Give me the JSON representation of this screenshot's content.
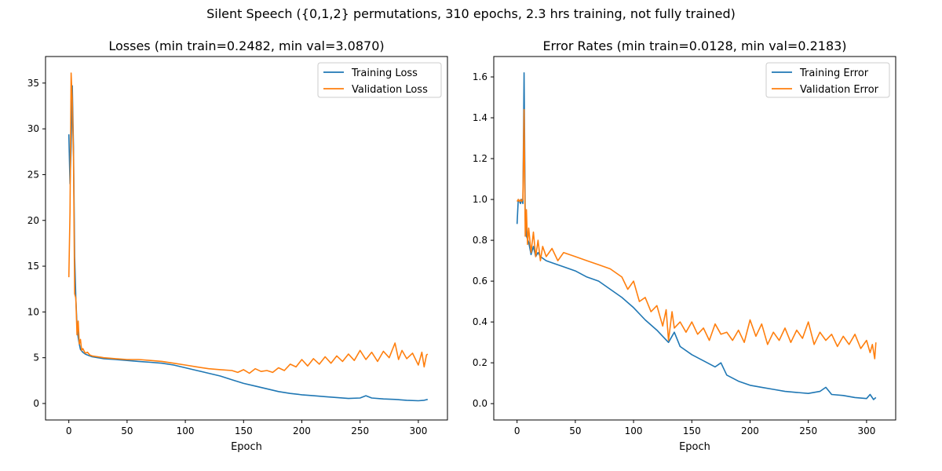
{
  "figure": {
    "suptitle": "Silent Speech ({0,1,2} permutations, 310 epochs, 2.3 hrs training, not fully trained)"
  },
  "chart_data": [
    {
      "type": "line",
      "title": "Losses (min train=0.2482, min val=3.0870)",
      "xlabel": "Epoch",
      "ylabel": "",
      "xlim": [
        -20,
        325
      ],
      "ylim": [
        -1.8,
        37.9
      ],
      "xticks": [
        0,
        50,
        100,
        150,
        200,
        250,
        300
      ],
      "yticks": [
        0,
        5,
        10,
        15,
        20,
        25,
        30,
        35
      ],
      "legend_position": "top-right",
      "grid": false,
      "series": [
        {
          "name": "Training Loss",
          "color": "#1f77b4",
          "x": [
            0,
            1,
            2,
            3,
            4,
            5,
            6,
            7,
            8,
            9,
            10,
            12,
            14,
            16,
            18,
            20,
            25,
            30,
            40,
            50,
            60,
            70,
            80,
            90,
            100,
            110,
            120,
            130,
            140,
            150,
            160,
            170,
            180,
            190,
            200,
            210,
            220,
            230,
            240,
            250,
            255,
            260,
            270,
            280,
            290,
            300,
            305,
            308
          ],
          "y": [
            29.4,
            24,
            28,
            34.7,
            28,
            16,
            11.5,
            8.5,
            7.2,
            6.5,
            5.9,
            5.6,
            5.4,
            5.3,
            5.2,
            5.1,
            5.0,
            4.9,
            4.8,
            4.7,
            4.6,
            4.5,
            4.4,
            4.2,
            3.9,
            3.6,
            3.3,
            3.0,
            2.6,
            2.2,
            1.9,
            1.6,
            1.3,
            1.1,
            0.95,
            0.85,
            0.75,
            0.65,
            0.55,
            0.6,
            0.85,
            0.6,
            0.5,
            0.45,
            0.35,
            0.3,
            0.35,
            0.45
          ]
        },
        {
          "name": "Validation Loss",
          "color": "#ff7f0e",
          "x": [
            0,
            1,
            2,
            3,
            4,
            5,
            6,
            7,
            8,
            9,
            10,
            11,
            12,
            14,
            16,
            18,
            20,
            25,
            30,
            40,
            50,
            60,
            70,
            80,
            90,
            100,
            110,
            120,
            130,
            140,
            145,
            150,
            155,
            160,
            165,
            170,
            175,
            180,
            185,
            190,
            195,
            200,
            205,
            210,
            215,
            220,
            225,
            230,
            235,
            240,
            245,
            250,
            255,
            260,
            265,
            270,
            275,
            280,
            283,
            286,
            290,
            295,
            300,
            303,
            305,
            307,
            308
          ],
          "y": [
            13.8,
            21,
            36.1,
            33,
            27,
            12,
            11.5,
            7.5,
            9.0,
            6.5,
            7.0,
            5.8,
            6.0,
            5.5,
            5.6,
            5.3,
            5.2,
            5.1,
            5.0,
            4.9,
            4.8,
            4.8,
            4.7,
            4.6,
            4.4,
            4.2,
            4.0,
            3.8,
            3.7,
            3.6,
            3.4,
            3.7,
            3.3,
            3.8,
            3.5,
            3.6,
            3.4,
            3.9,
            3.6,
            4.3,
            4.0,
            4.8,
            4.1,
            4.9,
            4.3,
            5.1,
            4.4,
            5.2,
            4.6,
            5.4,
            4.7,
            5.8,
            4.8,
            5.6,
            4.6,
            5.7,
            5.0,
            6.6,
            4.8,
            5.8,
            4.9,
            5.5,
            4.2,
            5.6,
            4.0,
            5.3,
            5.4
          ]
        }
      ]
    },
    {
      "type": "line",
      "title": "Error Rates (min train=0.0128, min val=0.2183)",
      "xlabel": "Epoch",
      "ylabel": "",
      "xlim": [
        -20,
        325
      ],
      "ylim": [
        -0.08,
        1.7
      ],
      "xticks": [
        0,
        50,
        100,
        150,
        200,
        250,
        300
      ],
      "yticks": [
        0.0,
        0.2,
        0.4,
        0.6,
        0.8,
        1.0,
        1.2,
        1.4,
        1.6
      ],
      "ytick_labels": [
        "0.0",
        "0.2",
        "0.4",
        "0.6",
        "0.8",
        "1.0",
        "1.2",
        "1.4",
        "1.6"
      ],
      "legend_position": "top-right",
      "grid": false,
      "series": [
        {
          "name": "Training Error",
          "color": "#1f77b4",
          "x": [
            0,
            1,
            2,
            3,
            4,
            5,
            6,
            7,
            8,
            10,
            12,
            14,
            16,
            18,
            20,
            25,
            30,
            40,
            50,
            60,
            70,
            80,
            90,
            100,
            110,
            120,
            125,
            130,
            135,
            140,
            150,
            160,
            170,
            175,
            180,
            190,
            200,
            210,
            220,
            230,
            240,
            250,
            260,
            265,
            270,
            280,
            290,
            300,
            303,
            306,
            308
          ],
          "y": [
            0.88,
            1.0,
            0.99,
            0.98,
            1.0,
            0.98,
            1.62,
            0.9,
            0.82,
            0.79,
            0.73,
            0.77,
            0.72,
            0.74,
            0.72,
            0.7,
            0.69,
            0.67,
            0.65,
            0.62,
            0.6,
            0.56,
            0.52,
            0.47,
            0.41,
            0.36,
            0.33,
            0.3,
            0.35,
            0.28,
            0.24,
            0.21,
            0.18,
            0.2,
            0.14,
            0.11,
            0.09,
            0.08,
            0.07,
            0.06,
            0.055,
            0.05,
            0.06,
            0.08,
            0.045,
            0.04,
            0.03,
            0.025,
            0.045,
            0.02,
            0.03
          ]
        },
        {
          "name": "Validation Error",
          "color": "#ff7f0e",
          "x": [
            0,
            1,
            2,
            3,
            4,
            5,
            6,
            7,
            8,
            9,
            10,
            12,
            14,
            16,
            18,
            20,
            22,
            25,
            30,
            35,
            40,
            50,
            60,
            70,
            80,
            90,
            95,
            100,
            105,
            110,
            115,
            120,
            125,
            128,
            130,
            133,
            135,
            140,
            145,
            150,
            155,
            160,
            165,
            170,
            175,
            180,
            185,
            190,
            195,
            200,
            205,
            210,
            215,
            220,
            225,
            230,
            235,
            240,
            245,
            250,
            255,
            260,
            265,
            270,
            275,
            280,
            285,
            290,
            295,
            300,
            303,
            305,
            307,
            308
          ],
          "y": [
            0.99,
            1.0,
            0.99,
            1.0,
            0.99,
            1.0,
            1.44,
            0.82,
            0.95,
            0.78,
            0.86,
            0.74,
            0.84,
            0.72,
            0.8,
            0.7,
            0.77,
            0.72,
            0.76,
            0.7,
            0.74,
            0.72,
            0.7,
            0.68,
            0.66,
            0.62,
            0.56,
            0.6,
            0.5,
            0.52,
            0.45,
            0.48,
            0.38,
            0.46,
            0.31,
            0.45,
            0.37,
            0.4,
            0.35,
            0.4,
            0.34,
            0.37,
            0.31,
            0.39,
            0.34,
            0.35,
            0.31,
            0.36,
            0.3,
            0.41,
            0.33,
            0.39,
            0.29,
            0.35,
            0.31,
            0.37,
            0.3,
            0.36,
            0.32,
            0.4,
            0.29,
            0.35,
            0.31,
            0.34,
            0.28,
            0.33,
            0.29,
            0.34,
            0.27,
            0.31,
            0.25,
            0.29,
            0.22,
            0.3
          ]
        }
      ]
    }
  ]
}
